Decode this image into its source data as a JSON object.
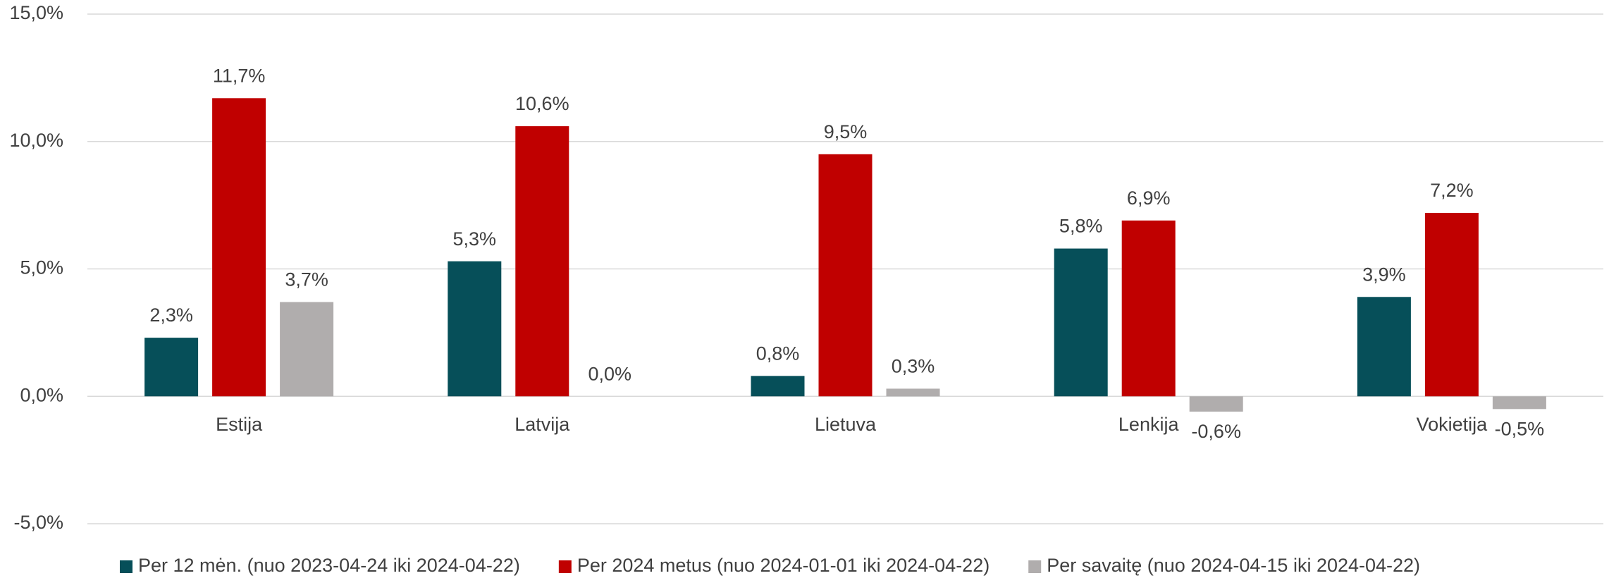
{
  "chart_data": {
    "type": "bar",
    "categories": [
      "Estija",
      "Latvija",
      "Lietuva",
      "Lenkija",
      "Vokietija"
    ],
    "series": [
      {
        "name": "Per 12 mėn. (nuo 2023-04-24 iki 2024-04-22)",
        "color": "#064f59",
        "values": [
          2.3,
          5.3,
          0.8,
          5.8,
          3.9
        ],
        "value_labels": [
          "2,3%",
          "5,3%",
          "0,8%",
          "5,8%",
          "3,9%"
        ]
      },
      {
        "name": "Per 2024 metus (nuo 2024-01-01 iki 2024-04-22)",
        "color": "#c00000",
        "values": [
          11.7,
          10.6,
          9.5,
          6.9,
          7.2
        ],
        "value_labels": [
          "11,7%",
          "10,6%",
          "9,5%",
          "6,9%",
          "7,2%"
        ]
      },
      {
        "name": "Per savaitę (nuo 2024-04-15 iki 2024-04-22)",
        "color": "#b0adad",
        "values": [
          3.7,
          0.0,
          0.3,
          -0.6,
          -0.5
        ],
        "value_labels": [
          "3,7%",
          "0,0%",
          "0,3%",
          "-0,6%",
          "-0,5%"
        ]
      }
    ],
    "ylim": [
      -5,
      15
    ],
    "yticks": [
      {
        "value": -5,
        "label": "-5,0%"
      },
      {
        "value": 0,
        "label": "0,0%"
      },
      {
        "value": 5,
        "label": "5,0%"
      },
      {
        "value": 10,
        "label": "10,0%"
      },
      {
        "value": 15,
        "label": "15,0%"
      }
    ],
    "grid": true,
    "legend": "bottom"
  }
}
